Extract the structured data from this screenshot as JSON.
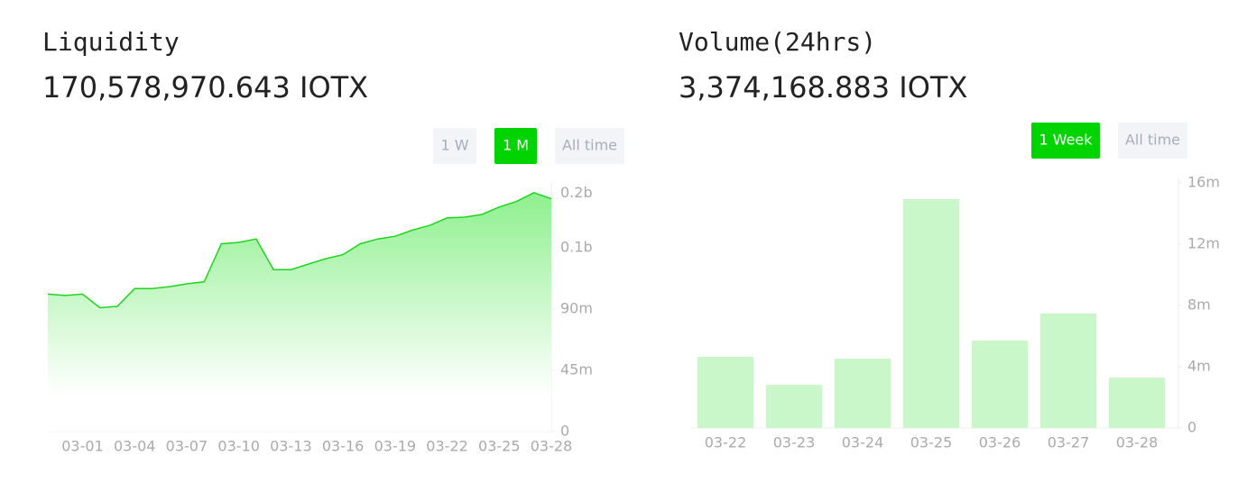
{
  "chart_data": [
    {
      "type": "area",
      "title": "Liquidity",
      "subtitle": "170,578,970.643 IOTX",
      "color": "#1fd41f",
      "ranges": [
        "1 W",
        "1 M",
        "All time"
      ],
      "active_range": 1,
      "categories": [
        null,
        null,
        "03-01",
        null,
        null,
        "03-04",
        null,
        null,
        "03-07",
        null,
        null,
        "03-10",
        null,
        null,
        "03-13",
        null,
        null,
        "03-16",
        null,
        null,
        "03-19",
        null,
        null,
        "03-22",
        null,
        null,
        "03-25",
        null,
        null,
        "03-28"
      ],
      "values": [
        101000000,
        100000000,
        101000000,
        91000000,
        92000000,
        105000000,
        105000000,
        106500000,
        108500000,
        110000000,
        138000000,
        139000000,
        141500000,
        119000000,
        119000000,
        123000000,
        127000000,
        130000000,
        138000000,
        141500000,
        143500000,
        148000000,
        151500000,
        157000000,
        157500000,
        159500000,
        165000000,
        169000000,
        175500000,
        171000000
      ],
      "ylim": [
        0,
        180000000
      ],
      "yticks": [
        0,
        {
          "value": 45000000,
          "label": "45m"
        },
        {
          "value": 90000000,
          "label": "90m"
        },
        {
          "value": 135000000,
          "label": "0.1b"
        },
        {
          "value": 175000000,
          "label": "0.2b"
        }
      ]
    },
    {
      "type": "bar",
      "title": "Volume(24hrs)",
      "subtitle": "3,374,168.883 IOTX",
      "color": "#c9f7c9",
      "ranges": [
        "1 Week",
        "All time"
      ],
      "active_range": 0,
      "categories": [
        "03-22",
        "03-23",
        "03-24",
        "03-25",
        "03-26",
        "03-27",
        "03-28"
      ],
      "values": [
        4650000,
        2820000,
        4530000,
        14940000,
        5710000,
        7470000,
        3290000
      ],
      "ylim": [
        0,
        16000000
      ],
      "yticks": [
        0,
        {
          "value": 4000000,
          "label": "4m"
        },
        {
          "value": 8000000,
          "label": "8m"
        },
        {
          "value": 12000000,
          "label": "12m"
        },
        {
          "value": 16000000,
          "label": "16m"
        }
      ]
    }
  ]
}
